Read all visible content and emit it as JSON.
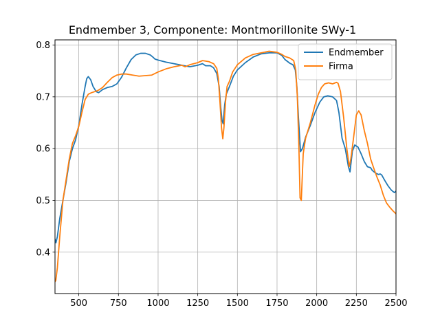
{
  "chart_data": {
    "type": "line",
    "title": "Endmember 3, Componente: Montmorillonite SWy-1",
    "xlabel": "",
    "ylabel": "",
    "xlim": [
      350,
      2500
    ],
    "ylim": [
      0.32,
      0.81
    ],
    "xticks": [
      500,
      750,
      1000,
      1250,
      1500,
      1750,
      2000,
      2250,
      2500
    ],
    "yticks": [
      0.4,
      0.5,
      0.6,
      0.7,
      0.8
    ],
    "grid": true,
    "legend_position": "top-right",
    "series": [
      {
        "name": "Endmember",
        "color": "#1f77b4",
        "points": [
          [
            350,
            0.425
          ],
          [
            356,
            0.418
          ],
          [
            365,
            0.43
          ],
          [
            380,
            0.465
          ],
          [
            400,
            0.5
          ],
          [
            420,
            0.535
          ],
          [
            440,
            0.575
          ],
          [
            460,
            0.6
          ],
          [
            480,
            0.617
          ],
          [
            500,
            0.645
          ],
          [
            520,
            0.685
          ],
          [
            540,
            0.72
          ],
          [
            550,
            0.735
          ],
          [
            560,
            0.739
          ],
          [
            575,
            0.733
          ],
          [
            590,
            0.72
          ],
          [
            610,
            0.71
          ],
          [
            625,
            0.708
          ],
          [
            650,
            0.714
          ],
          [
            680,
            0.718
          ],
          [
            710,
            0.72
          ],
          [
            740,
            0.725
          ],
          [
            770,
            0.738
          ],
          [
            800,
            0.756
          ],
          [
            830,
            0.772
          ],
          [
            860,
            0.781
          ],
          [
            890,
            0.784
          ],
          [
            920,
            0.784
          ],
          [
            950,
            0.781
          ],
          [
            970,
            0.776
          ],
          [
            980,
            0.773
          ],
          [
            1000,
            0.771
          ],
          [
            1050,
            0.767
          ],
          [
            1100,
            0.764
          ],
          [
            1150,
            0.761
          ],
          [
            1200,
            0.758
          ],
          [
            1250,
            0.761
          ],
          [
            1280,
            0.764
          ],
          [
            1300,
            0.76
          ],
          [
            1330,
            0.76
          ],
          [
            1350,
            0.756
          ],
          [
            1370,
            0.745
          ],
          [
            1385,
            0.72
          ],
          [
            1395,
            0.68
          ],
          [
            1403,
            0.655
          ],
          [
            1410,
            0.648
          ],
          [
            1420,
            0.685
          ],
          [
            1430,
            0.705
          ],
          [
            1450,
            0.72
          ],
          [
            1475,
            0.74
          ],
          [
            1500,
            0.752
          ],
          [
            1550,
            0.766
          ],
          [
            1600,
            0.777
          ],
          [
            1650,
            0.783
          ],
          [
            1700,
            0.785
          ],
          [
            1750,
            0.785
          ],
          [
            1780,
            0.78
          ],
          [
            1800,
            0.772
          ],
          [
            1830,
            0.765
          ],
          [
            1850,
            0.762
          ],
          [
            1865,
            0.752
          ],
          [
            1875,
            0.72
          ],
          [
            1885,
            0.66
          ],
          [
            1898,
            0.594
          ],
          [
            1910,
            0.6
          ],
          [
            1930,
            0.622
          ],
          [
            1960,
            0.645
          ],
          [
            1990,
            0.67
          ],
          [
            2020,
            0.69
          ],
          [
            2045,
            0.7
          ],
          [
            2070,
            0.702
          ],
          [
            2100,
            0.7
          ],
          [
            2125,
            0.693
          ],
          [
            2140,
            0.67
          ],
          [
            2160,
            0.62
          ],
          [
            2180,
            0.6
          ],
          [
            2200,
            0.565
          ],
          [
            2210,
            0.555
          ],
          [
            2225,
            0.595
          ],
          [
            2240,
            0.607
          ],
          [
            2260,
            0.603
          ],
          [
            2280,
            0.59
          ],
          [
            2300,
            0.575
          ],
          [
            2320,
            0.565
          ],
          [
            2340,
            0.563
          ],
          [
            2350,
            0.558
          ],
          [
            2370,
            0.553
          ],
          [
            2390,
            0.55
          ],
          [
            2400,
            0.551
          ],
          [
            2410,
            0.549
          ],
          [
            2430,
            0.538
          ],
          [
            2450,
            0.528
          ],
          [
            2470,
            0.52
          ],
          [
            2490,
            0.515
          ],
          [
            2500,
            0.518
          ]
        ]
      },
      {
        "name": "Firma",
        "color": "#ff7f0e",
        "points": [
          [
            350,
            0.343
          ],
          [
            355,
            0.345
          ],
          [
            365,
            0.37
          ],
          [
            380,
            0.43
          ],
          [
            400,
            0.5
          ],
          [
            420,
            0.54
          ],
          [
            440,
            0.58
          ],
          [
            460,
            0.61
          ],
          [
            480,
            0.625
          ],
          [
            500,
            0.643
          ],
          [
            520,
            0.67
          ],
          [
            540,
            0.695
          ],
          [
            560,
            0.705
          ],
          [
            580,
            0.708
          ],
          [
            600,
            0.71
          ],
          [
            625,
            0.713
          ],
          [
            650,
            0.718
          ],
          [
            680,
            0.728
          ],
          [
            710,
            0.737
          ],
          [
            740,
            0.742
          ],
          [
            770,
            0.744
          ],
          [
            800,
            0.744
          ],
          [
            840,
            0.742
          ],
          [
            880,
            0.74
          ],
          [
            920,
            0.741
          ],
          [
            960,
            0.742
          ],
          [
            980,
            0.745
          ],
          [
            1000,
            0.748
          ],
          [
            1050,
            0.754
          ],
          [
            1100,
            0.758
          ],
          [
            1150,
            0.761
          ],
          [
            1170,
            0.758
          ],
          [
            1200,
            0.762
          ],
          [
            1250,
            0.766
          ],
          [
            1280,
            0.77
          ],
          [
            1320,
            0.768
          ],
          [
            1350,
            0.764
          ],
          [
            1370,
            0.755
          ],
          [
            1380,
            0.735
          ],
          [
            1390,
            0.69
          ],
          [
            1400,
            0.64
          ],
          [
            1408,
            0.619
          ],
          [
            1415,
            0.64
          ],
          [
            1425,
            0.69
          ],
          [
            1435,
            0.72
          ],
          [
            1450,
            0.73
          ],
          [
            1470,
            0.748
          ],
          [
            1500,
            0.762
          ],
          [
            1550,
            0.775
          ],
          [
            1600,
            0.782
          ],
          [
            1650,
            0.785
          ],
          [
            1700,
            0.788
          ],
          [
            1750,
            0.786
          ],
          [
            1780,
            0.782
          ],
          [
            1800,
            0.778
          ],
          [
            1830,
            0.775
          ],
          [
            1855,
            0.77
          ],
          [
            1868,
            0.752
          ],
          [
            1878,
            0.7
          ],
          [
            1888,
            0.6
          ],
          [
            1895,
            0.505
          ],
          [
            1903,
            0.5
          ],
          [
            1915,
            0.59
          ],
          [
            1930,
            0.62
          ],
          [
            1960,
            0.65
          ],
          [
            1990,
            0.685
          ],
          [
            2010,
            0.705
          ],
          [
            2030,
            0.718
          ],
          [
            2050,
            0.725
          ],
          [
            2075,
            0.727
          ],
          [
            2100,
            0.725
          ],
          [
            2125,
            0.728
          ],
          [
            2135,
            0.726
          ],
          [
            2150,
            0.71
          ],
          [
            2170,
            0.66
          ],
          [
            2190,
            0.6
          ],
          [
            2205,
            0.565
          ],
          [
            2215,
            0.58
          ],
          [
            2230,
            0.615
          ],
          [
            2250,
            0.665
          ],
          [
            2265,
            0.673
          ],
          [
            2280,
            0.665
          ],
          [
            2300,
            0.635
          ],
          [
            2320,
            0.61
          ],
          [
            2340,
            0.58
          ],
          [
            2360,
            0.562
          ],
          [
            2380,
            0.545
          ],
          [
            2400,
            0.53
          ],
          [
            2420,
            0.51
          ],
          [
            2440,
            0.495
          ],
          [
            2460,
            0.487
          ],
          [
            2480,
            0.48
          ],
          [
            2500,
            0.474
          ]
        ]
      }
    ]
  }
}
